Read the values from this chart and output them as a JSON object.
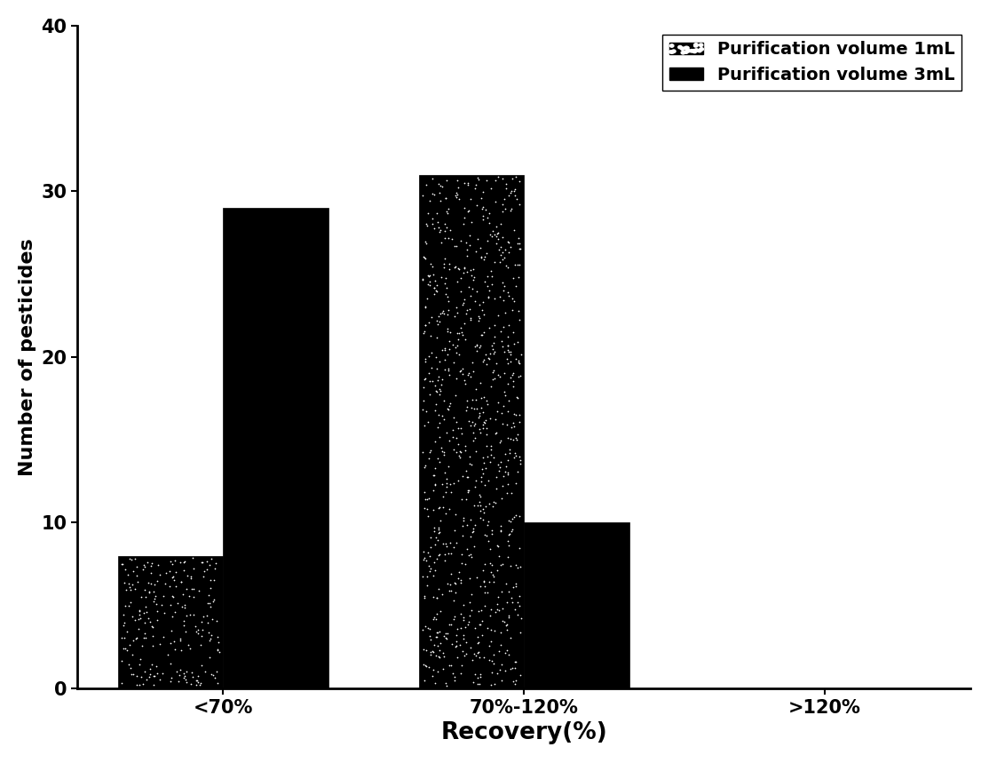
{
  "categories": [
    "<70%",
    "70%-120%",
    ">120%"
  ],
  "series1_values": [
    8,
    31,
    0
  ],
  "series2_values": [
    29,
    10,
    0
  ],
  "series1_label": "Purification volume 1mL",
  "series2_label": "Purification volume 3mL",
  "ylabel": "Number of pesticides",
  "xlabel": "Recovery(%)",
  "ylim": [
    0,
    40
  ],
  "yticks": [
    0,
    10,
    20,
    30,
    40
  ],
  "bar_width": 0.35,
  "background_color": "#ffffff",
  "label_fontsize": 16,
  "tick_fontsize": 15,
  "legend_fontsize": 14
}
